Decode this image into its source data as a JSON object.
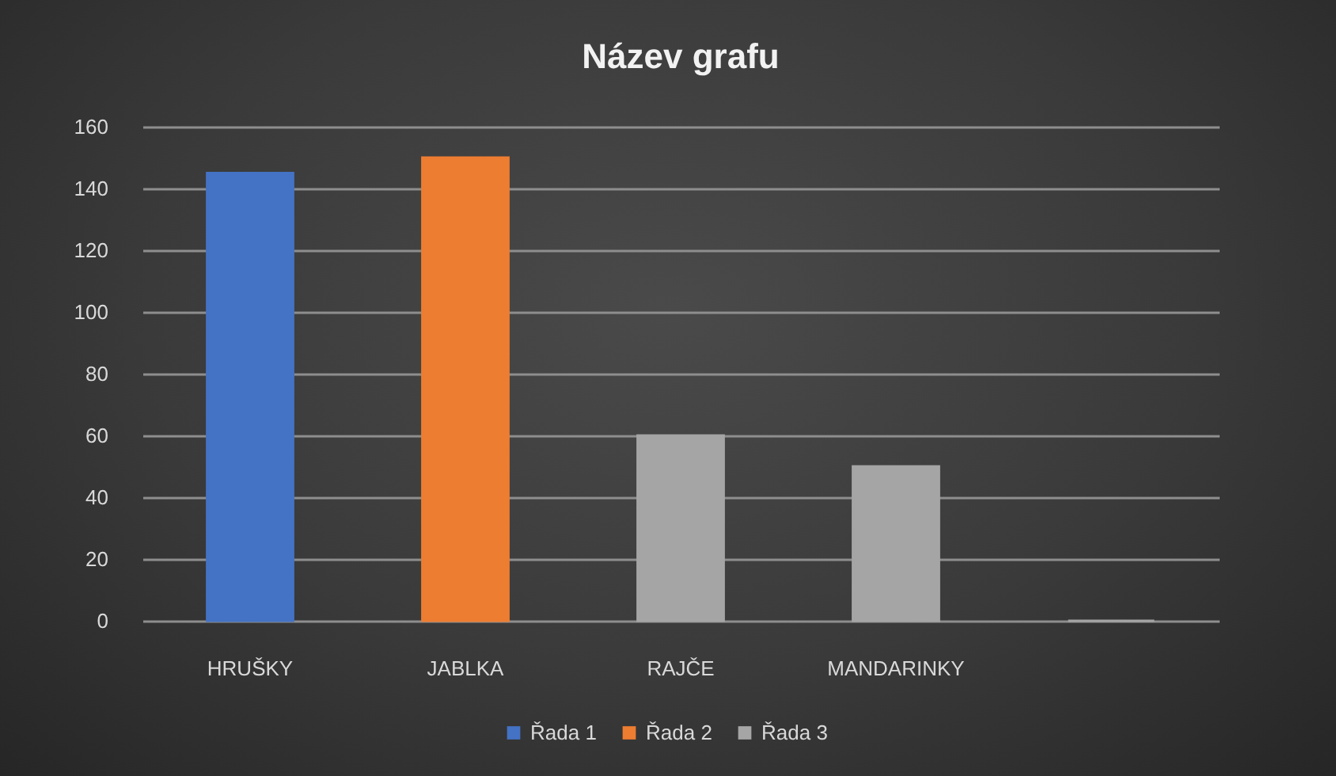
{
  "chart_data": {
    "type": "bar",
    "title": "Název grafu",
    "categories": [
      "HRUŠKY",
      "JABLKA",
      "RAJČE",
      "MANDARINKY",
      null
    ],
    "series": [
      {
        "name": "Řada 1",
        "color": "#4472c4",
        "values": [
          145,
          null,
          null,
          null,
          null
        ]
      },
      {
        "name": "Řada 2",
        "color": "#ed7d31",
        "values": [
          null,
          150,
          null,
          null,
          null
        ]
      },
      {
        "name": "Řada 3",
        "color": "#a5a5a5",
        "values": [
          null,
          null,
          60,
          50,
          0
        ]
      }
    ],
    "ylim": [
      0,
      160
    ],
    "yticks": [
      0,
      20,
      40,
      60,
      80,
      100,
      120,
      140,
      160
    ],
    "grid": "y",
    "legend": "bottom"
  }
}
